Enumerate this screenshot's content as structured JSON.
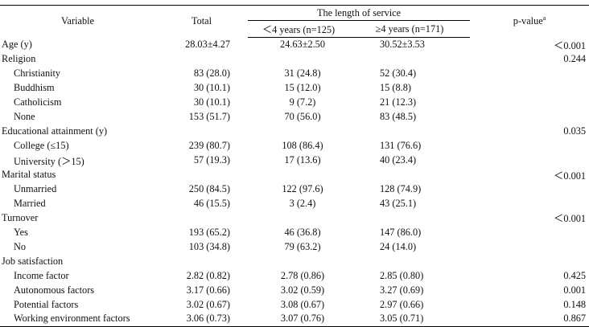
{
  "header": {
    "variable": "Variable",
    "total": "Total",
    "group": "The length of service",
    "lt4": "＜4 years (n=125)",
    "ge4": "≥4 years (n=171)",
    "pvalue": "p-value",
    "pvalue_sup": "a"
  },
  "rows": [
    {
      "variable": "Age (y)",
      "total": "28.03±4.27",
      "lt4": "24.63±2.50",
      "ge4": "30.52±3.53",
      "p": "＜0.001"
    },
    {
      "variable": "Religion",
      "total": "",
      "lt4": "",
      "ge4": "",
      "p": "0.244"
    },
    {
      "variable": "Christianity",
      "total": "83 (28.0)",
      "lt4": "31 (24.8)",
      "ge4": "52 (30.4)",
      "p": ""
    },
    {
      "variable": "Buddhism",
      "total": "30 (10.1)",
      "lt4": "15 (12.0)",
      "ge4": "15 (8.8)",
      "p": ""
    },
    {
      "variable": "Catholicism",
      "total": "30 (10.1)",
      "lt4": "9 (7.2)",
      "ge4": "21 (12.3)",
      "p": ""
    },
    {
      "variable": "None",
      "total": "153 (51.7)",
      "lt4": "70 (56.0)",
      "ge4": "83 (48.5)",
      "p": ""
    },
    {
      "variable": "Educational attainment (y)",
      "total": "",
      "lt4": "",
      "ge4": "",
      "p": "0.035"
    },
    {
      "variable": "College (≤15)",
      "total": "239 (80.7)",
      "lt4": "108 (86.4)",
      "ge4": "131 (76.6)",
      "p": ""
    },
    {
      "variable": "University (＞15)",
      "total": "57 (19.3)",
      "lt4": "17 (13.6)",
      "ge4": "40 (23.4)",
      "p": ""
    },
    {
      "variable": "Marital status",
      "total": "",
      "lt4": "",
      "ge4": "",
      "p": "＜0.001"
    },
    {
      "variable": "Unmarried",
      "total": "250 (84.5)",
      "lt4": "122 (97.6)",
      "ge4": "128 (74.9)",
      "p": ""
    },
    {
      "variable": "Married",
      "total": "46 (15.5)",
      "lt4": "3 (2.4)",
      "ge4": "43 (25.1)",
      "p": ""
    },
    {
      "variable": "Turnover",
      "total": "",
      "lt4": "",
      "ge4": "",
      "p": "＜0.001"
    },
    {
      "variable": "Yes",
      "total": "193 (65.2)",
      "lt4": "46 (36.8)",
      "ge4": "147 (86.0)",
      "p": ""
    },
    {
      "variable": "No",
      "total": "103 (34.8)",
      "lt4": "79 (63.2)",
      "ge4": "24 (14.0)",
      "p": ""
    },
    {
      "variable": "Job satisfaction",
      "total": "",
      "lt4": "",
      "ge4": "",
      "p": ""
    },
    {
      "variable": "Income factor",
      "total": "2.82 (0.82)",
      "lt4": "2.78 (0.86)",
      "ge4": "2.85 (0.80)",
      "p": "0.425"
    },
    {
      "variable": "Autonomous factors",
      "total": "3.17 (0.66)",
      "lt4": "3.02 (0.59)",
      "ge4": "3.27 (0.69)",
      "p": "0.001"
    },
    {
      "variable": "Potential factors",
      "total": "3.02 (0.67)",
      "lt4": "3.08 (0.67)",
      "ge4": "2.97 (0.66)",
      "p": "0.148"
    },
    {
      "variable": "Working environment factors",
      "total": "3.06 (0.73)",
      "lt4": "3.07 (0.76)",
      "ge4": "3.05 (0.71)",
      "p": "0.867"
    }
  ]
}
